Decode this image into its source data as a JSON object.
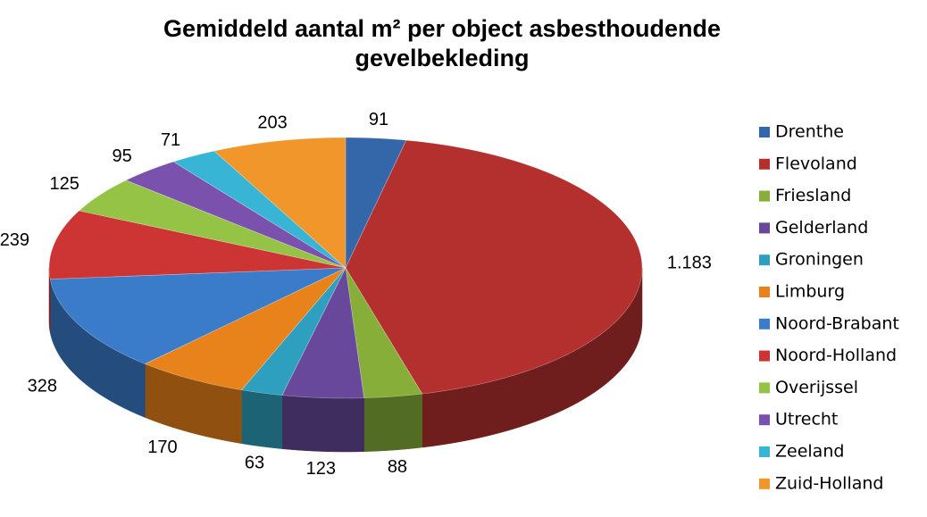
{
  "chart_data": {
    "type": "pie3d",
    "title": "Gemiddeld aantal m² per object asbesthoudende gevelbekleding",
    "categories": [
      "Drenthe",
      "Flevoland",
      "Friesland",
      "Gelderland",
      "Groningen",
      "Limburg",
      "Noord-Brabant",
      "Noord-Holland",
      "Overijssel",
      "Utrecht",
      "Zeeland",
      "Zuid-Holland"
    ],
    "values": [
      91,
      1183,
      88,
      123,
      63,
      170,
      328,
      239,
      125,
      95,
      71,
      203
    ],
    "value_labels": [
      "91",
      "1.183",
      "88",
      "123",
      "63",
      "170",
      "328",
      "239",
      "125",
      "95",
      "71",
      "203"
    ],
    "colors": [
      "#3467aa",
      "#b3302e",
      "#86ae38",
      "#68489a",
      "#2f9fbf",
      "#e8821a",
      "#3a7cc9",
      "#cc3533",
      "#94c345",
      "#7a52ad",
      "#38b4d4",
      "#f0962a"
    ],
    "legend": "right"
  }
}
